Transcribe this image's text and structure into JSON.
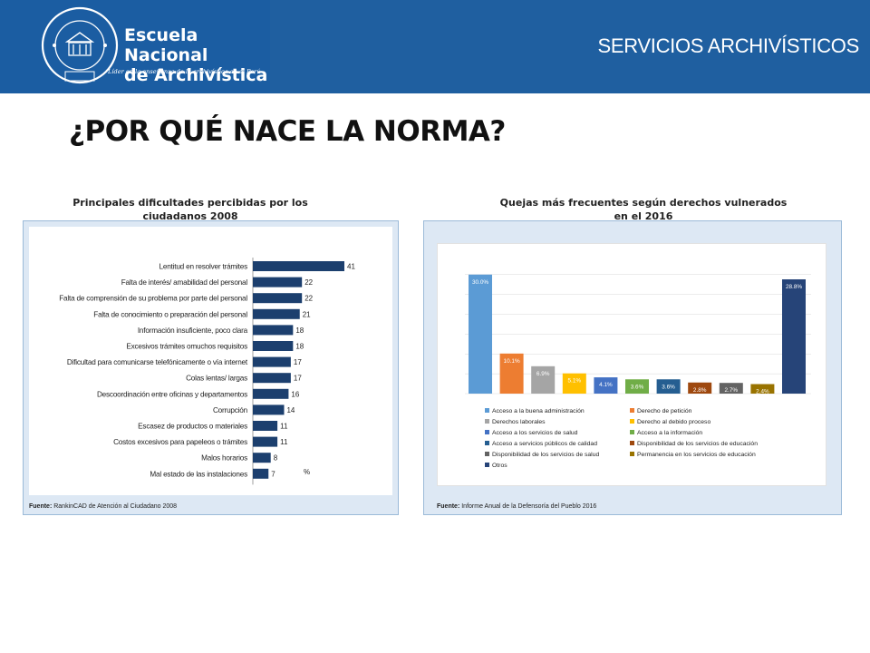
{
  "header": {
    "logo_name_line1": "Escuela Nacional",
    "logo_name_line2": "de Archivística",
    "logo_tagline": "Líder en la enseñanza de la archivística en el Perú",
    "seal_text": "ARCHIVO GENERAL DE LA NACIÓN · PERÚ 1861 · ENA",
    "section_title": "SERVICIOS ARCHIVÍSTICOS",
    "colors": {
      "header_bg": "#1f5fa0",
      "logo_bg": "#1b5da2"
    }
  },
  "slide": {
    "title": "¿POR QUÉ NACE LA NORMA?"
  },
  "chart_data": [
    {
      "type": "bar",
      "orientation": "horizontal",
      "title_line1": "Principales dificultades percibidas por los",
      "title_line2": "ciudadanos 2008",
      "categories": [
        "Lentitud en resolver trámites",
        "Falta de interés/ amabilidad del personal",
        "Falta de comprensión de su problema por parte del personal",
        "Falta de conocimiento o preparación del personal",
        "Información insuficiente, poco clara",
        "Excesivos trámites omuchos requisitos",
        "Dificultad para comunicarse telefónicamente o vía internet",
        "Colas lentas/ largas",
        "Descoordinación entre oficinas y departamentos",
        "Corrupción",
        "Escasez de productos o materiales",
        "Costos excesivos para papeleos o trámites",
        "Malos horarios",
        "Mal estado de las instalaciones"
      ],
      "values": [
        41,
        22,
        22,
        21,
        18,
        18,
        17,
        17,
        16,
        14,
        11,
        11,
        8,
        7
      ],
      "unit_label": "%",
      "xlim": [
        0,
        41
      ],
      "bar_color": "#1c3f6e",
      "source_label": "Fuente:",
      "source": "RankinCAD de Atención al Ciudadano 2008"
    },
    {
      "type": "bar",
      "orientation": "vertical",
      "title_line1": "Quejas más frecuentes según derechos vulnerados",
      "title_line2": "en el 2016",
      "categories": [
        "Acceso a la buena administración",
        "Derecho de petición",
        "Derechos laborales",
        "Derecho al debido proceso",
        "Acceso a los servicios de salud",
        "Acceso a la información",
        "Acceso a servicios públicos de calidad",
        "Disponibilidad de los servicios de educación",
        "Disponibilidad de los servicios de salud",
        "Permanencia en los servicios de educación",
        "Otros"
      ],
      "values": [
        30.0,
        10.1,
        6.9,
        5.1,
        4.1,
        3.6,
        3.6,
        2.8,
        2.7,
        2.4,
        28.8
      ],
      "value_labels": [
        "30.0%",
        "10.1%",
        "6.9%",
        "5.1%",
        "4.1%",
        "3.6%",
        "3.6%",
        "2.8%",
        "2.7%",
        "2.4%",
        "28.8%"
      ],
      "colors": [
        "#5b9bd5",
        "#ed7d31",
        "#a5a5a5",
        "#ffc000",
        "#4472c4",
        "#70ad47",
        "#255e91",
        "#9e480e",
        "#636363",
        "#997300",
        "#264478"
      ],
      "ylim": [
        0,
        32
      ],
      "grid": true,
      "legend": "bottom",
      "source_label": "Fuente:",
      "source": "Informe Anual de la Defensoría del Pueblo 2016"
    }
  ]
}
